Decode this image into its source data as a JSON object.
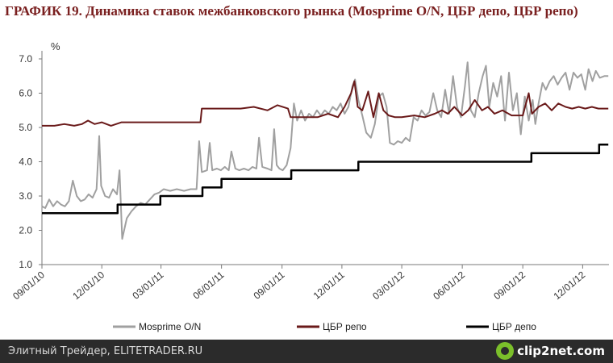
{
  "title": "ГРАФИК 19. Динамика ставок межбанковского рынка (Mosprime O/N, ЦБР депо, ЦБР репо)",
  "footer": {
    "left_text": "Элитный Трейдер, ELITETRADER.RU",
    "logo_text": "clip2net.com",
    "logo_icon": "clip2net-logo-icon"
  },
  "chart_data": {
    "type": "line",
    "ylabel": "%",
    "ylim": [
      1.0,
      7.0
    ],
    "yticks": [
      "1.0",
      "2.0",
      "3.0",
      "4.0",
      "5.0",
      "6.0",
      "7.0"
    ],
    "xlim": [
      "2010-09-01",
      "2013-01-10"
    ],
    "xticks": [
      "09/01/10",
      "12/01/10",
      "03/01/11",
      "06/01/11",
      "09/01/11",
      "12/01/11",
      "03/01/12",
      "06/01/12",
      "09/01/12",
      "12/01/12"
    ],
    "grid": false,
    "legend_position": "bottom",
    "series": [
      {
        "name": "Mosprime O/N",
        "color": "#a0a0a0",
        "points": [
          [
            "2010-09-01",
            2.7
          ],
          [
            "2010-09-06",
            2.65
          ],
          [
            "2010-09-12",
            2.9
          ],
          [
            "2010-09-18",
            2.7
          ],
          [
            "2010-09-24",
            2.85
          ],
          [
            "2010-09-30",
            2.75
          ],
          [
            "2010-10-06",
            2.7
          ],
          [
            "2010-10-12",
            2.85
          ],
          [
            "2010-10-18",
            3.45
          ],
          [
            "2010-10-24",
            3.0
          ],
          [
            "2010-10-30",
            2.85
          ],
          [
            "2010-11-05",
            2.9
          ],
          [
            "2010-11-11",
            3.05
          ],
          [
            "2010-11-17",
            2.95
          ],
          [
            "2010-11-23",
            3.2
          ],
          [
            "2010-11-27",
            4.75
          ],
          [
            "2010-11-30",
            3.3
          ],
          [
            "2010-12-06",
            3.0
          ],
          [
            "2010-12-12",
            2.95
          ],
          [
            "2010-12-18",
            3.2
          ],
          [
            "2010-12-24",
            3.05
          ],
          [
            "2010-12-28",
            3.75
          ],
          [
            "2011-01-01",
            1.75
          ],
          [
            "2011-01-08",
            2.35
          ],
          [
            "2011-01-15",
            2.55
          ],
          [
            "2011-01-22",
            2.7
          ],
          [
            "2011-01-29",
            2.8
          ],
          [
            "2011-02-05",
            2.75
          ],
          [
            "2011-02-12",
            2.9
          ],
          [
            "2011-02-19",
            3.05
          ],
          [
            "2011-02-26",
            3.1
          ],
          [
            "2011-03-05",
            3.2
          ],
          [
            "2011-03-15",
            3.15
          ],
          [
            "2011-03-25",
            3.2
          ],
          [
            "2011-04-05",
            3.15
          ],
          [
            "2011-04-15",
            3.2
          ],
          [
            "2011-04-24",
            3.2
          ],
          [
            "2011-04-28",
            4.6
          ],
          [
            "2011-05-02",
            3.7
          ],
          [
            "2011-05-10",
            3.75
          ],
          [
            "2011-05-14",
            4.55
          ],
          [
            "2011-05-18",
            3.75
          ],
          [
            "2011-05-25",
            3.8
          ],
          [
            "2011-05-31",
            3.75
          ],
          [
            "2011-06-06",
            3.85
          ],
          [
            "2011-06-12",
            3.75
          ],
          [
            "2011-06-16",
            4.3
          ],
          [
            "2011-06-22",
            3.8
          ],
          [
            "2011-06-28",
            3.75
          ],
          [
            "2011-07-05",
            3.8
          ],
          [
            "2011-07-12",
            3.75
          ],
          [
            "2011-07-18",
            3.85
          ],
          [
            "2011-07-24",
            3.8
          ],
          [
            "2011-07-28",
            4.7
          ],
          [
            "2011-08-02",
            3.85
          ],
          [
            "2011-08-10",
            3.8
          ],
          [
            "2011-08-16",
            3.75
          ],
          [
            "2011-08-20",
            4.95
          ],
          [
            "2011-08-24",
            3.9
          ],
          [
            "2011-08-28",
            3.8
          ],
          [
            "2011-09-02",
            3.75
          ],
          [
            "2011-09-08",
            3.9
          ],
          [
            "2011-09-14",
            4.4
          ],
          [
            "2011-09-19",
            5.7
          ],
          [
            "2011-09-24",
            5.2
          ],
          [
            "2011-09-30",
            5.5
          ],
          [
            "2011-10-06",
            5.2
          ],
          [
            "2011-10-12",
            5.4
          ],
          [
            "2011-10-18",
            5.3
          ],
          [
            "2011-10-24",
            5.5
          ],
          [
            "2011-10-30",
            5.35
          ],
          [
            "2011-11-05",
            5.5
          ],
          [
            "2011-11-11",
            5.4
          ],
          [
            "2011-11-17",
            5.6
          ],
          [
            "2011-11-23",
            5.5
          ],
          [
            "2011-11-29",
            5.7
          ],
          [
            "2011-12-05",
            5.4
          ],
          [
            "2011-12-11",
            5.6
          ],
          [
            "2011-12-17",
            6.2
          ],
          [
            "2011-12-21",
            6.4
          ],
          [
            "2011-12-26",
            5.8
          ],
          [
            "2012-01-01",
            5.35
          ],
          [
            "2012-01-07",
            4.85
          ],
          [
            "2012-01-14",
            4.7
          ],
          [
            "2012-01-20",
            5.1
          ],
          [
            "2012-01-26",
            5.9
          ],
          [
            "2012-02-01",
            6.0
          ],
          [
            "2012-02-07",
            5.6
          ],
          [
            "2012-02-12",
            4.55
          ],
          [
            "2012-02-18",
            4.5
          ],
          [
            "2012-02-24",
            4.6
          ],
          [
            "2012-03-01",
            4.55
          ],
          [
            "2012-03-07",
            4.7
          ],
          [
            "2012-03-13",
            4.6
          ],
          [
            "2012-03-19",
            5.3
          ],
          [
            "2012-03-25",
            5.2
          ],
          [
            "2012-03-31",
            5.5
          ],
          [
            "2012-04-06",
            5.35
          ],
          [
            "2012-04-12",
            5.45
          ],
          [
            "2012-04-18",
            6.0
          ],
          [
            "2012-04-24",
            5.5
          ],
          [
            "2012-04-30",
            5.3
          ],
          [
            "2012-05-06",
            6.1
          ],
          [
            "2012-05-12",
            5.4
          ],
          [
            "2012-05-18",
            6.5
          ],
          [
            "2012-05-24",
            5.6
          ],
          [
            "2012-05-30",
            5.3
          ],
          [
            "2012-06-05",
            6.2
          ],
          [
            "2012-06-09",
            6.9
          ],
          [
            "2012-06-14",
            5.5
          ],
          [
            "2012-06-20",
            5.3
          ],
          [
            "2012-06-26",
            6.0
          ],
          [
            "2012-07-02",
            6.5
          ],
          [
            "2012-07-07",
            6.8
          ],
          [
            "2012-07-12",
            5.6
          ],
          [
            "2012-07-18",
            6.3
          ],
          [
            "2012-07-24",
            5.9
          ],
          [
            "2012-07-30",
            6.5
          ],
          [
            "2012-08-05",
            5.2
          ],
          [
            "2012-08-11",
            6.6
          ],
          [
            "2012-08-17",
            5.5
          ],
          [
            "2012-08-23",
            6.0
          ],
          [
            "2012-08-29",
            4.8
          ],
          [
            "2012-09-04",
            5.9
          ],
          [
            "2012-09-10",
            5.2
          ],
          [
            "2012-09-16",
            5.8
          ],
          [
            "2012-09-20",
            5.1
          ],
          [
            "2012-09-25",
            5.7
          ],
          [
            "2012-10-01",
            6.3
          ],
          [
            "2012-10-06",
            6.1
          ],
          [
            "2012-10-12",
            6.35
          ],
          [
            "2012-10-18",
            6.5
          ],
          [
            "2012-10-24",
            6.25
          ],
          [
            "2012-10-30",
            6.45
          ],
          [
            "2012-11-05",
            6.6
          ],
          [
            "2012-11-11",
            6.1
          ],
          [
            "2012-11-17",
            6.6
          ],
          [
            "2012-11-23",
            6.45
          ],
          [
            "2012-11-29",
            6.55
          ],
          [
            "2012-12-05",
            6.1
          ],
          [
            "2012-12-10",
            6.7
          ],
          [
            "2012-12-16",
            6.35
          ],
          [
            "2012-12-21",
            6.65
          ],
          [
            "2012-12-27",
            6.45
          ],
          [
            "2013-01-03",
            6.5
          ],
          [
            "2013-01-09",
            6.5
          ]
        ]
      },
      {
        "name": "ЦБР репо",
        "color": "#6a1a1a",
        "points": [
          [
            "2010-09-01",
            5.05
          ],
          [
            "2010-09-20",
            5.05
          ],
          [
            "2010-10-05",
            5.1
          ],
          [
            "2010-10-20",
            5.05
          ],
          [
            "2010-11-01",
            5.1
          ],
          [
            "2010-11-10",
            5.2
          ],
          [
            "2010-11-20",
            5.1
          ],
          [
            "2010-12-01",
            5.15
          ],
          [
            "2010-12-15",
            5.05
          ],
          [
            "2010-12-31",
            5.15
          ],
          [
            "2011-01-20",
            5.15
          ],
          [
            "2011-02-10",
            5.15
          ],
          [
            "2011-03-01",
            5.15
          ],
          [
            "2011-03-31",
            5.15
          ],
          [
            "2011-04-30",
            5.15
          ],
          [
            "2011-05-02",
            5.55
          ],
          [
            "2011-05-30",
            5.55
          ],
          [
            "2011-06-30",
            5.55
          ],
          [
            "2011-07-20",
            5.6
          ],
          [
            "2011-08-10",
            5.5
          ],
          [
            "2011-08-25",
            5.65
          ],
          [
            "2011-09-10",
            5.55
          ],
          [
            "2011-09-14",
            5.3
          ],
          [
            "2011-10-10",
            5.3
          ],
          [
            "2011-10-25",
            5.3
          ],
          [
            "2011-11-10",
            5.4
          ],
          [
            "2011-11-25",
            5.3
          ],
          [
            "2011-12-05",
            5.6
          ],
          [
            "2011-12-15",
            6.0
          ],
          [
            "2011-12-20",
            6.35
          ],
          [
            "2011-12-25",
            5.6
          ],
          [
            "2012-01-01",
            5.5
          ],
          [
            "2012-01-10",
            6.05
          ],
          [
            "2012-01-18",
            5.3
          ],
          [
            "2012-01-26",
            6.0
          ],
          [
            "2012-02-02",
            5.5
          ],
          [
            "2012-02-10",
            5.35
          ],
          [
            "2012-02-20",
            5.3
          ],
          [
            "2012-03-01",
            5.3
          ],
          [
            "2012-03-20",
            5.35
          ],
          [
            "2012-04-05",
            5.3
          ],
          [
            "2012-04-20",
            5.4
          ],
          [
            "2012-05-01",
            5.5
          ],
          [
            "2012-05-10",
            5.4
          ],
          [
            "2012-05-20",
            5.6
          ],
          [
            "2012-06-01",
            5.35
          ],
          [
            "2012-06-10",
            5.5
          ],
          [
            "2012-06-20",
            5.8
          ],
          [
            "2012-07-01",
            5.5
          ],
          [
            "2012-07-10",
            5.6
          ],
          [
            "2012-07-20",
            5.4
          ],
          [
            "2012-08-01",
            5.5
          ],
          [
            "2012-08-15",
            5.35
          ],
          [
            "2012-09-01",
            5.35
          ],
          [
            "2012-09-10",
            6.0
          ],
          [
            "2012-09-15",
            5.4
          ],
          [
            "2012-09-25",
            5.6
          ],
          [
            "2012-10-05",
            5.7
          ],
          [
            "2012-10-15",
            5.5
          ],
          [
            "2012-10-25",
            5.7
          ],
          [
            "2012-11-05",
            5.6
          ],
          [
            "2012-11-15",
            5.55
          ],
          [
            "2012-11-25",
            5.6
          ],
          [
            "2012-12-05",
            5.55
          ],
          [
            "2012-12-15",
            5.6
          ],
          [
            "2012-12-25",
            5.55
          ],
          [
            "2013-01-09",
            5.55
          ]
        ]
      },
      {
        "name": "ЦБР депо",
        "color": "#000000",
        "step": true,
        "points": [
          [
            "2010-09-01",
            2.5
          ],
          [
            "2010-12-25",
            2.75
          ],
          [
            "2011-02-28",
            3.0
          ],
          [
            "2011-05-03",
            3.25
          ],
          [
            "2011-06-01",
            3.5
          ],
          [
            "2011-09-15",
            3.75
          ],
          [
            "2011-12-26",
            4.0
          ],
          [
            "2012-09-14",
            4.25
          ],
          [
            "2012-12-26",
            4.5
          ],
          [
            "2013-01-09",
            4.5
          ]
        ]
      }
    ]
  }
}
